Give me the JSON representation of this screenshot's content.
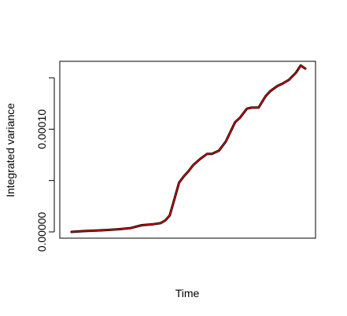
{
  "chart_data": {
    "type": "line",
    "xlabel": "Time",
    "ylabel": "Integrated variance",
    "ylim": [
      0,
      0.00016
    ],
    "yticks": [
      0,
      5e-05,
      0.0001,
      0.00015
    ],
    "ytick_labels": [
      "0.00000",
      "",
      "0.00010",
      ""
    ],
    "x_ticks_labeled": false,
    "grid": false,
    "legend": "none",
    "series": [
      {
        "color": "#000000",
        "x": [
          0,
          0.05,
          0.1,
          0.15,
          0.2,
          0.25,
          0.3,
          0.35,
          0.38,
          0.4,
          0.42,
          0.44,
          0.46,
          0.48,
          0.5,
          0.52,
          0.55,
          0.58,
          0.6,
          0.63,
          0.66,
          0.7,
          0.72,
          0.75,
          0.77,
          0.8,
          0.83,
          0.85,
          0.88,
          0.9,
          0.93,
          0.96,
          0.98,
          1.0
        ],
        "y": [
          0.0,
          8e-07,
          1.2e-06,
          1.8e-06,
          2.6e-06,
          3.6e-06,
          6.5e-06,
          7.5e-06,
          8.5e-06,
          1.1e-05,
          1.6e-05,
          3.2e-05,
          4.8e-05,
          5.4e-05,
          5.9e-05,
          6.5e-05,
          7.1e-05,
          7.6e-05,
          7.6e-05,
          7.9e-05,
          8.8e-05,
          0.000107,
          0.000111,
          0.00012,
          0.000121,
          0.000121,
          0.000132,
          0.000137,
          0.000142,
          0.000144,
          0.000148,
          0.000155,
          0.000162,
          0.000159
        ]
      },
      {
        "color": "#cc0000",
        "x": [
          0,
          0.05,
          0.1,
          0.15,
          0.2,
          0.25,
          0.3,
          0.35,
          0.38,
          0.4,
          0.42,
          0.44,
          0.46,
          0.48,
          0.5,
          0.52,
          0.55,
          0.58,
          0.6,
          0.63,
          0.66,
          0.7,
          0.72,
          0.75,
          0.77,
          0.8,
          0.83,
          0.85,
          0.88,
          0.9,
          0.93,
          0.96,
          0.98,
          1.0
        ],
        "y": [
          0.0,
          8e-07,
          1.2e-06,
          1.8e-06,
          2.6e-06,
          3.6e-06,
          6.5e-06,
          7.5e-06,
          8.5e-06,
          1.1e-05,
          1.6e-05,
          3.2e-05,
          4.8e-05,
          5.4e-05,
          5.9e-05,
          6.5e-05,
          7.1e-05,
          7.6e-05,
          7.6e-05,
          7.9e-05,
          8.8e-05,
          0.000107,
          0.000111,
          0.00012,
          0.000121,
          0.000121,
          0.000132,
          0.000137,
          0.000142,
          0.000144,
          0.000148,
          0.000155,
          0.000162,
          0.000159
        ]
      }
    ]
  }
}
